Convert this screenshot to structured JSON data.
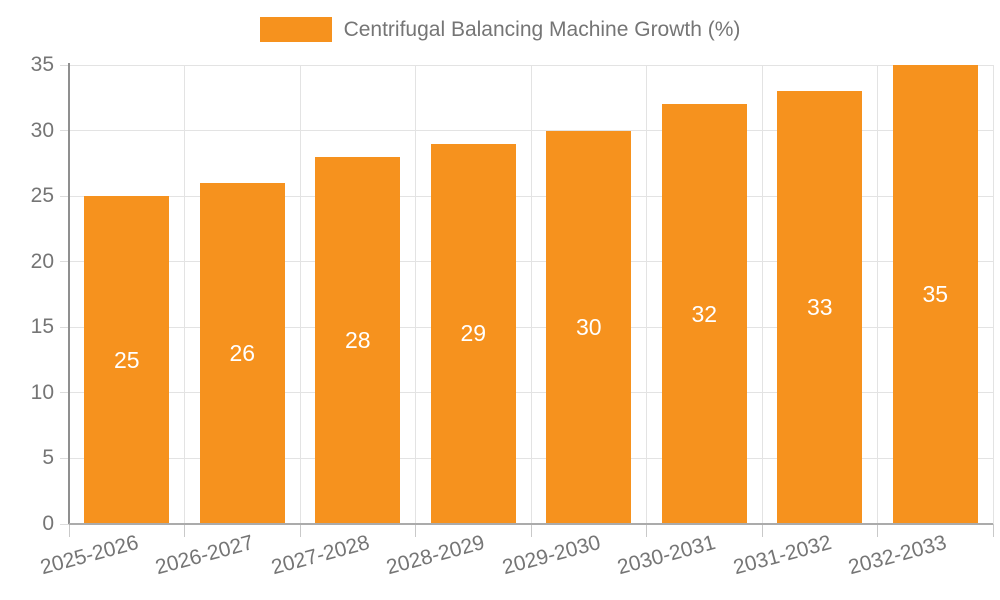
{
  "legend": {
    "label": "Centrifugal Balancing Machine Growth (%)"
  },
  "chart_data": {
    "type": "bar",
    "title": "Centrifugal Balancing Machine Growth (%)",
    "categories": [
      "2025-2026",
      "2026-2027",
      "2027-2028",
      "2028-2029",
      "2029-2030",
      "2030-2031",
      "2031-2032",
      "2032-2033"
    ],
    "values": [
      25,
      26,
      28,
      29,
      30,
      32,
      33,
      35
    ],
    "xlabel": "",
    "ylabel": "",
    "ylim": [
      0,
      35
    ],
    "yticks": [
      0,
      5,
      10,
      15,
      20,
      25,
      30,
      35
    ],
    "grid": true,
    "legend_position": "top-center",
    "bar_color": "#f6921e",
    "value_label_color": "#ffffff",
    "axis_text_color": "#757575",
    "gridline_color": "#e3e3e3"
  }
}
